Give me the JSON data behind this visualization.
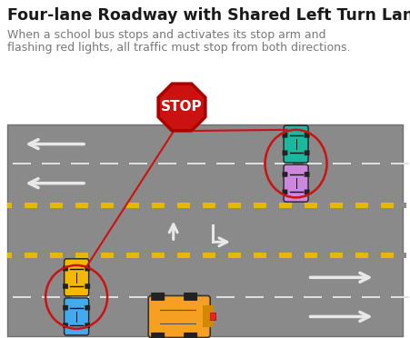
{
  "title": "Four-lane Roadway with Shared Left Turn Lane",
  "subtitle_line1": "When a school bus stops and activates its stop arm and",
  "subtitle_line2": "flashing red lights, all traffic must stop from both directions.",
  "bg_color": "#ffffff",
  "road_color": "#8a8a8a",
  "road_border_color": "#707070",
  "yellow_line_color": "#e8b800",
  "white_dash_color": "#e0e0e0",
  "title_fontsize": 12.5,
  "subtitle_fontsize": 9.0,
  "title_color": "#1a1a1a",
  "subtitle_color": "#777777",
  "stop_sign_red": "#cc1111",
  "stop_sign_dark": "#aa0000",
  "red_line_color": "#cc1111",
  "car_teal": "#1ab89e",
  "car_purple": "#cc88dd",
  "car_yellow": "#f5b800",
  "car_blue": "#44aaee",
  "bus_orange": "#f5a020",
  "bus_dark": "#d48800",
  "ellipse_color": "#cc1111",
  "arrow_white": "#e8e8e8"
}
